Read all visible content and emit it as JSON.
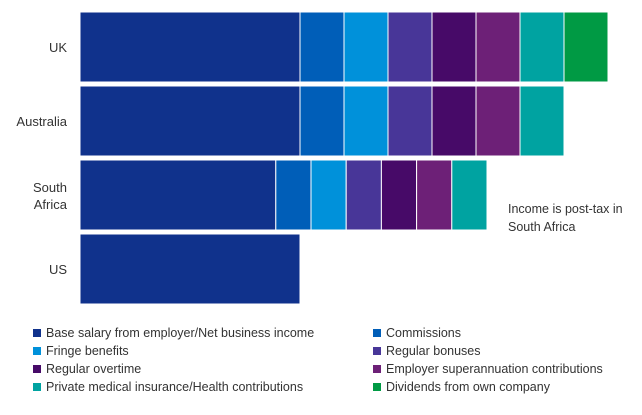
{
  "chart_data": {
    "type": "bar",
    "orientation": "horizontal",
    "stacked": true,
    "categories": [
      "UK",
      "Australia",
      "South Africa",
      "US"
    ],
    "series": [
      {
        "name": "Base salary from employer/Net business income",
        "color": "#10328C",
        "values": [
          100,
          100,
          89,
          100
        ]
      },
      {
        "name": "Commissions",
        "color": "#005EB8",
        "values": [
          20,
          20,
          16,
          0
        ]
      },
      {
        "name": "Fringe benefits",
        "color": "#0091DA",
        "values": [
          20,
          20,
          16,
          0
        ]
      },
      {
        "name": "Regular bonuses",
        "color": "#483698",
        "values": [
          20,
          20,
          16,
          0
        ]
      },
      {
        "name": "Regular overtime",
        "color": "#470A68",
        "values": [
          20,
          20,
          16,
          0
        ]
      },
      {
        "name": "Employer superannuation contributions",
        "color": "#6D2077",
        "values": [
          20,
          20,
          16,
          0
        ]
      },
      {
        "name": "Private medical insurance/Health contributions",
        "color": "#00A3A1",
        "values": [
          20,
          20,
          16,
          0
        ]
      },
      {
        "name": "Dividends from own company",
        "color": "#009A44",
        "values": [
          20,
          0,
          0,
          0
        ]
      }
    ],
    "xlim": [
      0,
      240
    ],
    "annotation": {
      "text_lines": [
        "Income is post-tax in",
        "South Africa"
      ]
    },
    "legend_position": "bottom",
    "grid": false
  }
}
